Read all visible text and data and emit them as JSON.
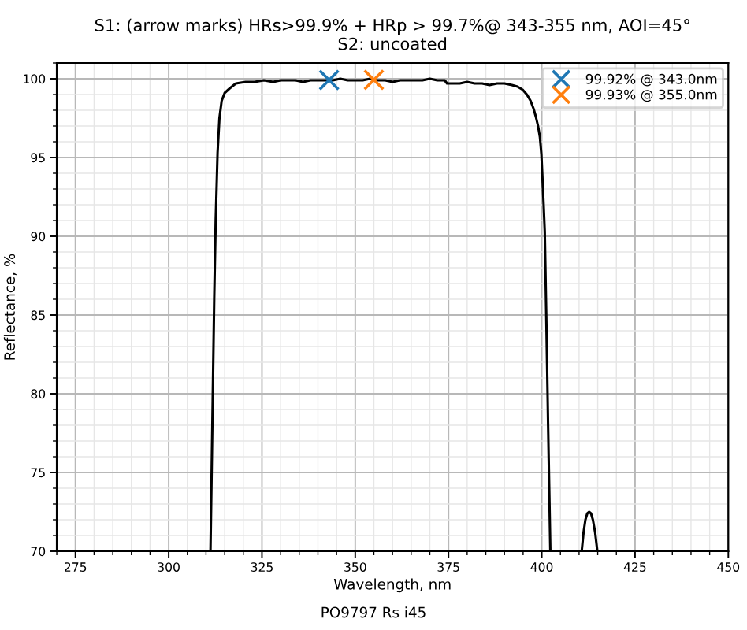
{
  "chart_data": {
    "type": "line",
    "title": "S1: (arrow marks) HRs>99.9% + HRp > 99.7%@ 343-355 nm, AOI=45°\nS2: uncoated",
    "xlabel": "Wavelength, nm",
    "ylabel": "Reflectance, %",
    "annotations": [
      "PO9797 Rs i45"
    ],
    "xlim": [
      270,
      450
    ],
    "ylim": [
      70,
      101
    ],
    "xticks": [
      275,
      300,
      325,
      350,
      375,
      400,
      425,
      450
    ],
    "yticks": [
      70,
      75,
      80,
      85,
      90,
      95,
      100
    ],
    "grid": true,
    "legend": "top right",
    "series": [
      {
        "color": "#000000",
        "x": [
          311.2,
          311.7,
          312.2,
          312.6,
          313.1,
          313.6,
          314.2,
          315.0,
          316.4,
          318.0,
          320.6,
          323.0,
          325.5,
          328,
          330,
          332,
          334,
          336,
          338,
          340,
          342,
          344,
          346,
          348,
          350,
          352,
          354,
          356,
          358,
          360,
          362,
          364,
          366,
          368,
          370,
          372,
          374,
          374.6,
          376,
          378,
          380,
          382,
          384,
          386,
          388,
          390,
          392,
          393.5,
          394.9,
          396.0,
          397.0,
          397.8,
          398.4,
          399.0,
          399.5,
          399.9,
          400.2,
          400.5,
          400.8,
          401.2,
          401.7,
          402.3,
          406,
          410.7,
          411.2,
          411.7,
          412.2,
          412.7,
          413.2,
          413.7,
          414.3,
          414.9
        ],
        "values": [
          70,
          78,
          86,
          91,
          95.3,
          97.5,
          98.6,
          99.1,
          99.4,
          99.7,
          99.8,
          99.8,
          99.9,
          99.8,
          99.9,
          99.9,
          99.9,
          99.8,
          99.9,
          99.9,
          99.9,
          99.9,
          100.0,
          99.9,
          99.9,
          99.9,
          100.0,
          99.9,
          99.9,
          99.8,
          99.9,
          99.9,
          99.9,
          99.9,
          100.0,
          99.9,
          99.9,
          99.7,
          99.7,
          99.7,
          99.8,
          99.7,
          99.7,
          99.6,
          99.7,
          99.7,
          99.6,
          99.5,
          99.3,
          99.0,
          98.6,
          98.1,
          97.6,
          97.0,
          96.3,
          95.2,
          93.6,
          92.0,
          90.3,
          85,
          78,
          70,
          null,
          70,
          71.2,
          72.0,
          72.4,
          72.5,
          72.4,
          72.0,
          71.2,
          70
        ]
      },
      {
        "type": "scatter",
        "name": "99.92% @ 343.0nm",
        "color": "#1f77b4",
        "marker": "cross",
        "x": [
          343
        ],
        "values": [
          99.92
        ]
      },
      {
        "type": "scatter",
        "name": "99.93% @ 355.0nm",
        "color": "#ff7f0e",
        "marker": "cross",
        "x": [
          355
        ],
        "values": [
          99.93
        ]
      }
    ]
  }
}
